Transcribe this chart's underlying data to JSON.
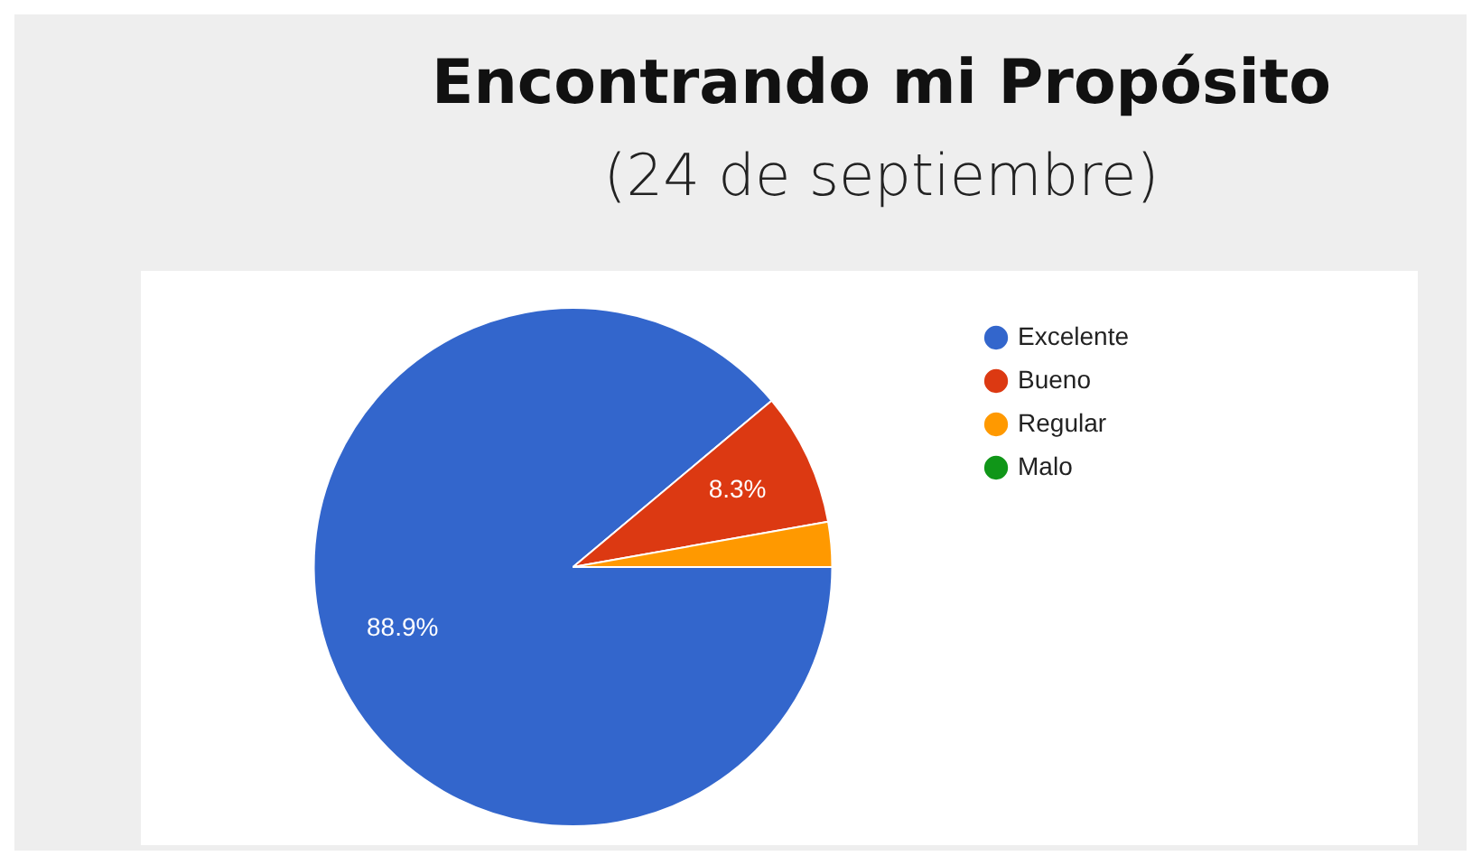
{
  "chart_data": {
    "type": "pie",
    "title": "Encontrando mi Propósito",
    "subtitle": "(24 de septiembre)",
    "categories": [
      "Excelente",
      "Bueno",
      "Regular",
      "Malo"
    ],
    "values": [
      88.9,
      8.3,
      2.8,
      0
    ],
    "colors": [
      "#3366cc",
      "#dc3912",
      "#ff9900",
      "#109618"
    ],
    "value_labels": [
      "88.9%",
      "8.3%",
      null,
      null
    ],
    "legend": "top right"
  }
}
